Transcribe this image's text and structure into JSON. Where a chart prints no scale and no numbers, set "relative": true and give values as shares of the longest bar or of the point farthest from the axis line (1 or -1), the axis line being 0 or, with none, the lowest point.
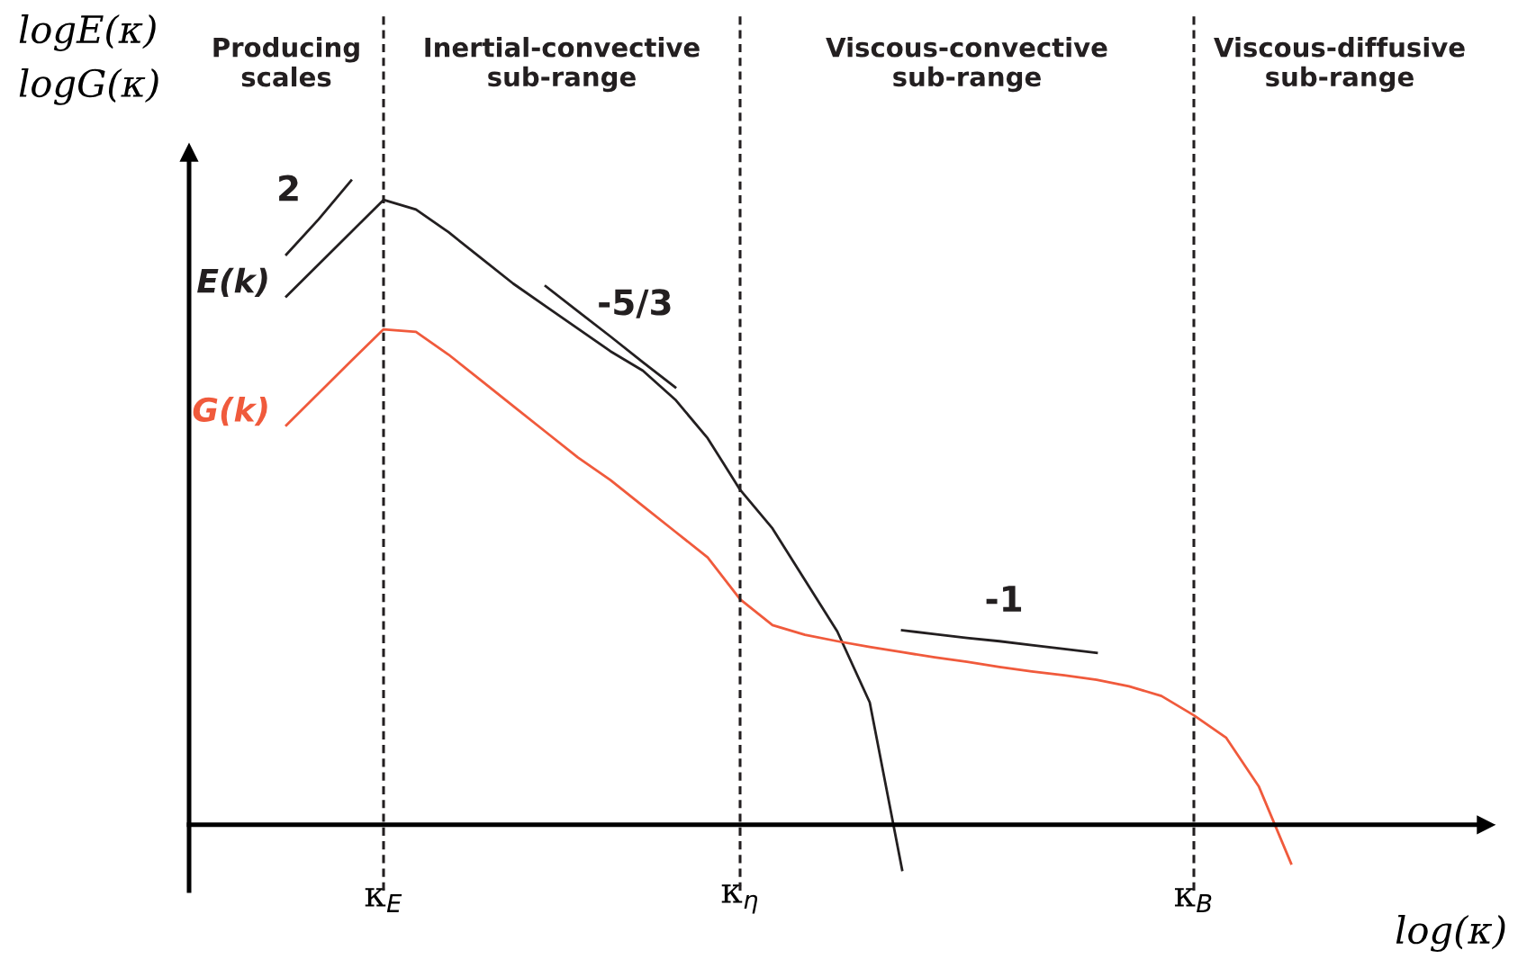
{
  "chart_data": {
    "type": "line",
    "relative": true,
    "xlabel": "log(κ)",
    "ylabel": "logE(κ)\nlogG(κ)",
    "categories": [
      null,
      null,
      null,
      null,
      null,
      null,
      "κ$_{E}$",
      null,
      null,
      null,
      null,
      null,
      null,
      null,
      null,
      null,
      null,
      "κ$_{η}$",
      null,
      null,
      null,
      null,
      null,
      null,
      null,
      null,
      null,
      null,
      null,
      null,
      null,
      "κ$_{B}$",
      null,
      null,
      null,
      null,
      null,
      null,
      null,
      null,
      null
    ],
    "tick_labels": "x",
    "grid": false,
    "legend": false,
    "marker": "none",
    "line_style": "solid",
    "ref_lines": [
      {
        "axis": "x",
        "value": "κ$_{E}$",
        "color": "#231f20",
        "line_style": "dashed"
      },
      {
        "axis": "x",
        "value": "κ$_{η}$",
        "color": "#231f20",
        "line_style": "dashed"
      },
      {
        "axis": "x",
        "value": "κ$_{B}$",
        "color": "#231f20",
        "line_style": "dashed"
      }
    ],
    "series": [
      {
        "name": "E(k)",
        "color": "#231f20",
        "values": [
          null,
          null,
          null,
          0.82,
          0.87,
          0.92,
          0.97,
          0.955,
          0.92,
          0.88,
          0.84,
          0.805,
          0.77,
          0.735,
          0.705,
          0.66,
          0.6,
          0.52,
          0.46,
          0.38,
          0.3,
          0.19,
          -0.07,
          null,
          null,
          null,
          null,
          null,
          null,
          null,
          null,
          null,
          null,
          null,
          null,
          null,
          null,
          null,
          null,
          null,
          null
        ]
      },
      {
        "name": "G(k)",
        "color": "#f05a3c",
        "values": [
          null,
          null,
          null,
          0.62,
          0.67,
          0.72,
          0.769,
          0.765,
          0.73,
          0.69,
          0.65,
          0.61,
          0.57,
          0.535,
          0.495,
          0.455,
          0.415,
          0.35,
          0.31,
          0.295,
          0.285,
          0.276,
          0.268,
          0.26,
          0.253,
          0.245,
          0.238,
          0.232,
          0.225,
          0.215,
          0.2,
          0.17,
          0.135,
          0.06,
          -0.06,
          null,
          null,
          null,
          null,
          null,
          null
        ]
      },
      {
        "color": "#231f20",
        "values": [
          null,
          null,
          null,
          0.885,
          0.94,
          1.0,
          null,
          null,
          null,
          null,
          null,
          null,
          null,
          null,
          null,
          null,
          null,
          null,
          null,
          null,
          null,
          null,
          null,
          null,
          null,
          null,
          null,
          null,
          null,
          null,
          null,
          null,
          null,
          null,
          null,
          null,
          null,
          null,
          null,
          null,
          null
        ]
      },
      {
        "color": "#231f20",
        "values": [
          null,
          null,
          null,
          null,
          null,
          null,
          null,
          null,
          null,
          null,
          null,
          0.836,
          0.797,
          0.758,
          0.718,
          0.679,
          null,
          null,
          null,
          null,
          null,
          null,
          null,
          null,
          null,
          null,
          null,
          null,
          null,
          null,
          null,
          null,
          null,
          null,
          null,
          null,
          null,
          null,
          null,
          null,
          null
        ]
      },
      {
        "color": "#231f20",
        "values": [
          null,
          null,
          null,
          null,
          null,
          null,
          null,
          null,
          null,
          null,
          null,
          null,
          null,
          null,
          null,
          null,
          null,
          null,
          null,
          null,
          null,
          null,
          0.302,
          0.296,
          0.29,
          0.285,
          0.279,
          0.273,
          0.267,
          null,
          null,
          null,
          null,
          null,
          null,
          null,
          null,
          null,
          null,
          null,
          null
        ]
      }
    ],
    "annotations": [
      "Producing\nscales",
      "Inertial-convective\nsub-range",
      "Viscous-convective\nsub-range",
      "Viscous-diffusive\nsub-range",
      "2",
      "-5/3",
      "-1"
    ]
  }
}
